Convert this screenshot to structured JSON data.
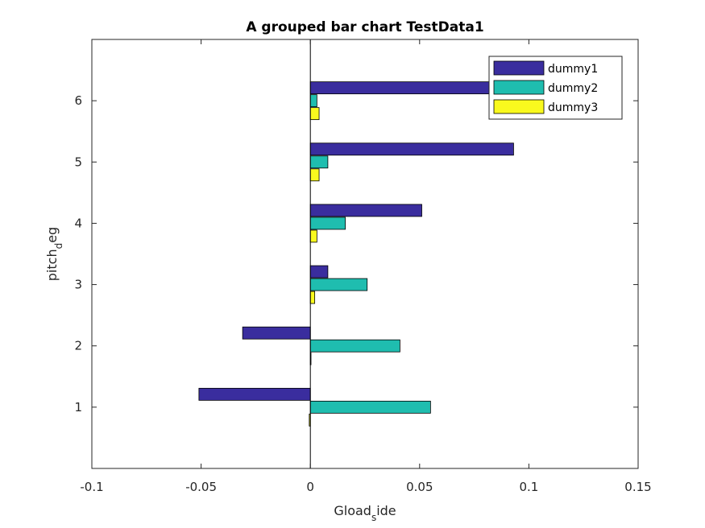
{
  "chart_data": {
    "type": "bar",
    "orientation": "horizontal",
    "title": "A grouped bar chart TestData1",
    "xlabel": {
      "main": "Gload",
      "sub": "s",
      "rest": "ide"
    },
    "ylabel": {
      "main": "pitch",
      "sub": "d",
      "rest": "eg"
    },
    "xlim": [
      -0.1,
      0.15
    ],
    "ylim": [
      0,
      7
    ],
    "xticks": [
      -0.1,
      -0.05,
      0,
      0.05,
      0.1,
      0.15
    ],
    "xtick_labels": [
      "-0.1",
      "-0.05",
      "0",
      "0.05",
      "0.1",
      "0.15"
    ],
    "yticks": [
      1,
      2,
      3,
      4,
      5,
      6
    ],
    "ytick_labels": [
      "1",
      "2",
      "3",
      "4",
      "5",
      "6"
    ],
    "categories": [
      1,
      2,
      3,
      4,
      5,
      6
    ],
    "series": [
      {
        "name": "dummy1",
        "color": "#3a2d9e",
        "values": [
          -0.051,
          -0.031,
          0.008,
          0.051,
          0.093,
          0.126
        ]
      },
      {
        "name": "dummy2",
        "color": "#1fbdaf",
        "values": [
          0.055,
          0.041,
          0.026,
          0.016,
          0.008,
          0.003
        ]
      },
      {
        "name": "dummy3",
        "color": "#f9f91e",
        "values": [
          -0.0005,
          0.0,
          0.002,
          0.003,
          0.004,
          0.004
        ]
      }
    ],
    "legend_position": "top-right",
    "grid": false
  }
}
